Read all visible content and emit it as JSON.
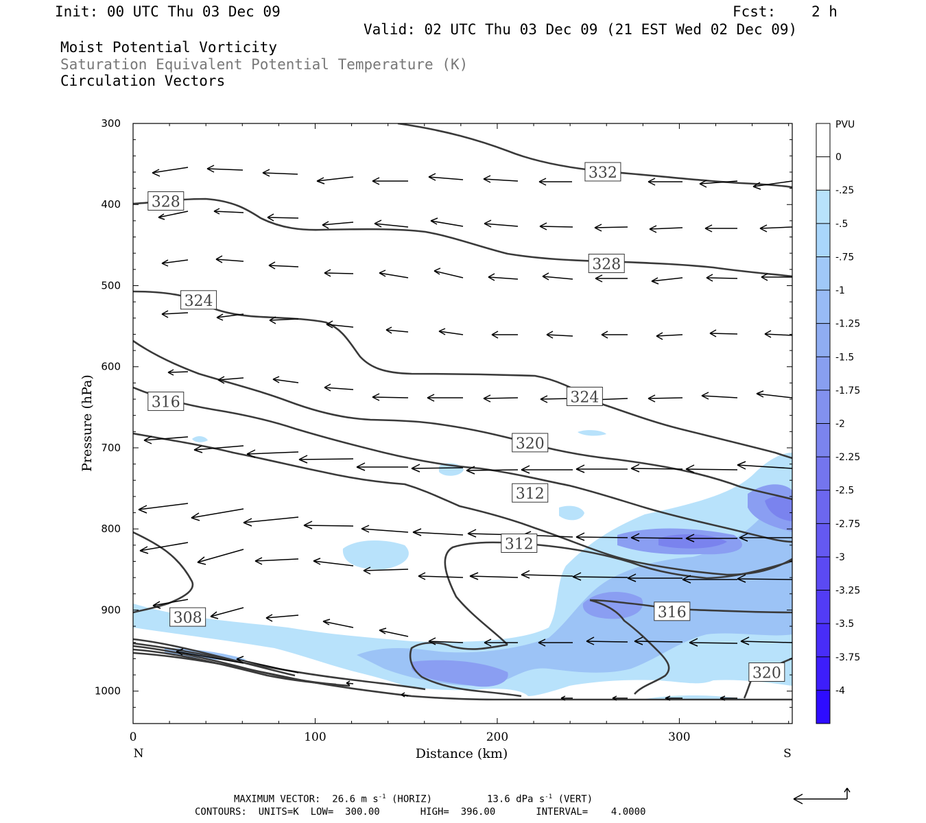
{
  "header": {
    "init": "Init: 00 UTC Thu 03 Dec 09",
    "fcst_label": "Fcst:",
    "fcst_value": "2 h",
    "valid": "Valid: 02 UTC Thu 03 Dec 09 (21 EST Wed 02 Dec 09)",
    "field1": "Moist Potential Vorticity",
    "field2": "Saturation Equivalent Potential Temperature (K)",
    "field3": "Circulation Vectors"
  },
  "footer": {
    "maxvec": "MAXIMUM VECTOR:  26.6 m s",
    "maxvec_exp1": "-1",
    "maxvec_horiz": " (HORIZ)",
    "maxvec_vert": "13.6 dPa s",
    "maxvec_exp2": "-1",
    "maxvec_vert_tail": " (VERT)",
    "contours": "CONTOURS:  UNITS=K  LOW=  300.00       HIGH=  396.00       INTERVAL=    4.0000"
  },
  "colors": {
    "contour": "#3a3a3a",
    "vector": "#000000",
    "colorbar": [
      "#ffffff",
      "#ffffff",
      "#b8e2fb",
      "#a9d6fb",
      "#a0c8f8",
      "#98bbf5",
      "#8fadf2",
      "#889ff0",
      "#8291ef",
      "#7b84ee",
      "#7475ee",
      "#6c67ef",
      "#6459f1",
      "#5b4af3",
      "#523cf5",
      "#482df8",
      "#3d1efb",
      "#2e0cff"
    ]
  },
  "chart_data": {
    "type": "heatmap",
    "title": "",
    "xlabel": "Distance (km)",
    "ylabel": "Pressure (hPa)",
    "xlim": [
      0,
      362
    ],
    "ylim": [
      1040,
      300
    ],
    "x_ticks": [
      0,
      100,
      200,
      300
    ],
    "y_ticks": [
      300,
      400,
      500,
      600,
      700,
      800,
      900,
      1000
    ],
    "x_end_labels": {
      "left": "N",
      "right": "S"
    },
    "colorbar": {
      "unit": "PVU",
      "labels": [
        "0",
        "-.25",
        "-.5",
        "-.75",
        "-1",
        "-1.25",
        "-1.5",
        "-1.75",
        "-2",
        "-2.25",
        "-2.5",
        "-2.75",
        "-3",
        "-3.25",
        "-3.5",
        "-3.75",
        "-4"
      ]
    },
    "contour_labels": [
      {
        "text": "332",
        "x": 258,
        "p": 360
      },
      {
        "text": "328",
        "x": 18,
        "p": 396
      },
      {
        "text": "328",
        "x": 260,
        "p": 473
      },
      {
        "text": "324",
        "x": 36,
        "p": 518
      },
      {
        "text": "324",
        "x": 248,
        "p": 637
      },
      {
        "text": "316",
        "x": 18,
        "p": 643
      },
      {
        "text": "320",
        "x": 218,
        "p": 694
      },
      {
        "text": "312",
        "x": 218,
        "p": 756
      },
      {
        "text": "312",
        "x": 212,
        "p": 818
      },
      {
        "text": "316",
        "x": 296,
        "p": 902
      },
      {
        "text": "308",
        "x": 30,
        "p": 909
      },
      {
        "text": "320",
        "x": 348,
        "p": 977
      }
    ]
  }
}
